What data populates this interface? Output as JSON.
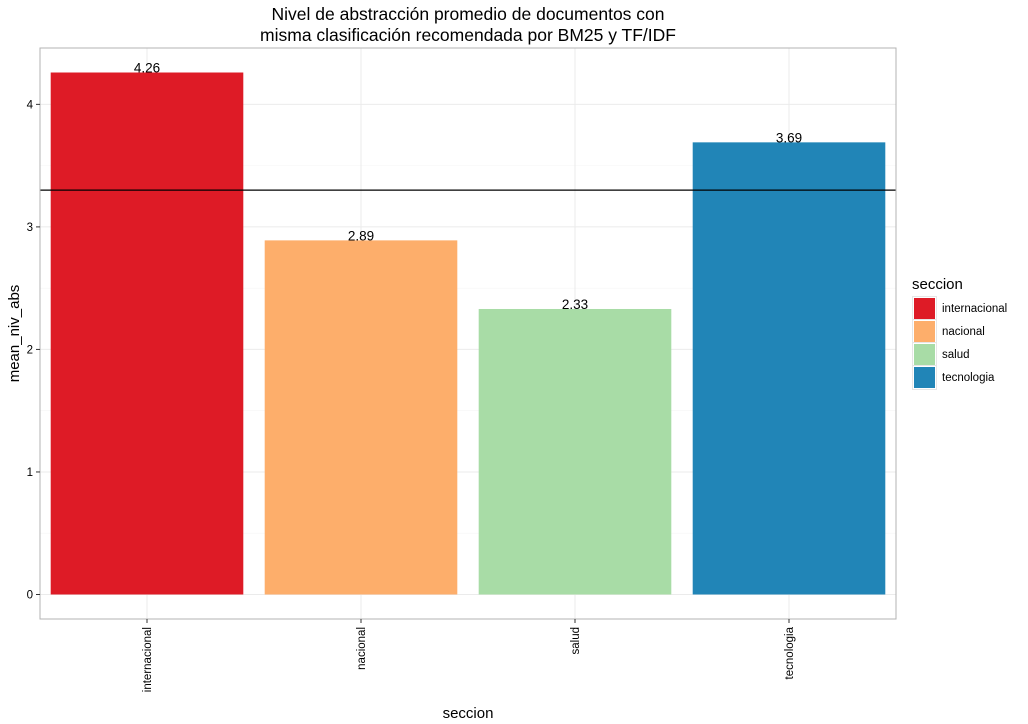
{
  "chart_data": {
    "type": "bar",
    "title_lines": [
      "Nivel de abstracción promedio de documentos con",
      "misma clasificación recomendada por BM25 y TF/IDF"
    ],
    "xlabel": "seccion",
    "ylabel": "mean_niv_abs",
    "categories": [
      "internacional",
      "nacional",
      "salud",
      "tecnologia"
    ],
    "values": [
      4.26,
      2.89,
      2.33,
      3.69
    ],
    "value_labels": [
      "4.26",
      "2.89",
      "2.33",
      "3.69"
    ],
    "colors": [
      "#de1b26",
      "#fdae6b",
      "#a8dca6",
      "#2185b7"
    ],
    "ylim": [
      -0.2,
      4.46
    ],
    "yticks": [
      0,
      1,
      2,
      3,
      4
    ],
    "reference_line": 3.3,
    "grid": true,
    "legend": {
      "title": "seccion",
      "position": "right",
      "entries": [
        "internacional",
        "nacional",
        "salud",
        "tecnologia"
      ]
    }
  }
}
